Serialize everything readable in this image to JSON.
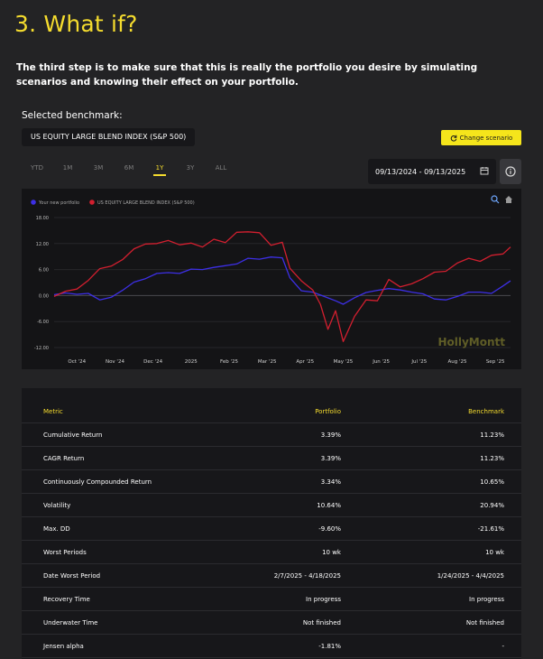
{
  "page": {
    "title": "3. What if?",
    "intro": "The third step is to make sure that this is really the portfolio you desire by simulating scenarios and knowing their effect on your portfolio."
  },
  "benchmark": {
    "label": "Selected benchmark:",
    "value": "US EQUITY LARGE BLEND INDEX (S&P 500)",
    "change_button": "Change scenario"
  },
  "periods": [
    "YTD",
    "1M",
    "3M",
    "6M",
    "1Y",
    "3Y",
    "ALL"
  ],
  "active_period": "1Y",
  "date_range": "09/13/2024 - 09/13/2025",
  "watermark": "HollyMontt",
  "colors": {
    "accent": "#f5dc2e",
    "portfolio": "#3d2fe6",
    "benchmark": "#d21f2f"
  },
  "chart_data": {
    "type": "line",
    "legend": "top-left",
    "grid": true,
    "ylim": [
      -12,
      16
    ],
    "yticks": [
      -12,
      -6,
      0,
      6,
      12,
      18
    ],
    "ytick_labels": [
      "-12.00",
      "-6.00",
      "0.00",
      "6.00",
      "12.00",
      "18.00"
    ],
    "x_tick_labels": [
      "Oct '24",
      "Nov '24",
      "Dec '24",
      "2025",
      "Feb '25",
      "Mar '25",
      "Apr '25",
      "May '25",
      "Jun '25",
      "Jul '25",
      "Aug '25",
      "Sep '25"
    ],
    "x_ticks": [
      0.6,
      1.6,
      2.6,
      3.6,
      4.6,
      5.6,
      6.6,
      7.6,
      8.6,
      9.6,
      10.6,
      11.6
    ],
    "x_range": [
      0,
      12
    ],
    "series": [
      {
        "name": "Your new portfolio",
        "color": "#3d2fe6",
        "points": [
          [
            0.0,
            0.2
          ],
          [
            0.3,
            0.6
          ],
          [
            0.6,
            0.3
          ],
          [
            0.9,
            0.5
          ],
          [
            1.2,
            -1.0
          ],
          [
            1.5,
            -0.4
          ],
          [
            1.8,
            1.2
          ],
          [
            2.1,
            3.1
          ],
          [
            2.4,
            3.9
          ],
          [
            2.7,
            5.1
          ],
          [
            3.0,
            5.3
          ],
          [
            3.3,
            5.1
          ],
          [
            3.6,
            6.1
          ],
          [
            3.9,
            6.0
          ],
          [
            4.2,
            6.5
          ],
          [
            4.5,
            6.9
          ],
          [
            4.8,
            7.3
          ],
          [
            5.1,
            8.6
          ],
          [
            5.4,
            8.4
          ],
          [
            5.7,
            8.9
          ],
          [
            6.0,
            8.7
          ],
          [
            6.2,
            4.1
          ],
          [
            6.5,
            1.1
          ],
          [
            6.8,
            0.8
          ],
          [
            7.1,
            -0.2
          ],
          [
            7.4,
            -1.2
          ],
          [
            7.6,
            -2.0
          ],
          [
            7.9,
            -0.5
          ],
          [
            8.2,
            0.7
          ],
          [
            8.5,
            1.2
          ],
          [
            8.8,
            1.6
          ],
          [
            9.1,
            1.3
          ],
          [
            9.4,
            0.8
          ],
          [
            9.7,
            0.4
          ],
          [
            10.0,
            -0.8
          ],
          [
            10.3,
            -1.0
          ],
          [
            10.6,
            -0.2
          ],
          [
            10.9,
            0.8
          ],
          [
            11.2,
            0.8
          ],
          [
            11.5,
            0.5
          ],
          [
            11.8,
            2.2
          ],
          [
            12.0,
            3.4
          ]
        ]
      },
      {
        "name": "US EQUITY LARGE BLEND INDEX (S&P 500)",
        "color": "#d21f2f",
        "points": [
          [
            0.0,
            -0.2
          ],
          [
            0.3,
            1.0
          ],
          [
            0.6,
            1.5
          ],
          [
            0.9,
            3.5
          ],
          [
            1.2,
            6.2
          ],
          [
            1.5,
            6.8
          ],
          [
            1.8,
            8.3
          ],
          [
            2.1,
            10.8
          ],
          [
            2.4,
            11.9
          ],
          [
            2.7,
            12.0
          ],
          [
            3.0,
            12.7
          ],
          [
            3.3,
            11.7
          ],
          [
            3.6,
            12.1
          ],
          [
            3.9,
            11.2
          ],
          [
            4.2,
            13.0
          ],
          [
            4.5,
            12.2
          ],
          [
            4.8,
            14.6
          ],
          [
            5.1,
            14.7
          ],
          [
            5.4,
            14.5
          ],
          [
            5.7,
            11.6
          ],
          [
            6.0,
            12.3
          ],
          [
            6.2,
            6.3
          ],
          [
            6.5,
            3.4
          ],
          [
            6.8,
            1.3
          ],
          [
            7.0,
            -2.0
          ],
          [
            7.2,
            -7.8
          ],
          [
            7.4,
            -3.5
          ],
          [
            7.6,
            -10.6
          ],
          [
            7.9,
            -4.8
          ],
          [
            8.2,
            -1.0
          ],
          [
            8.5,
            -1.2
          ],
          [
            8.8,
            3.7
          ],
          [
            9.1,
            2.0
          ],
          [
            9.4,
            2.7
          ],
          [
            9.7,
            3.9
          ],
          [
            10.0,
            5.4
          ],
          [
            10.3,
            5.6
          ],
          [
            10.6,
            7.5
          ],
          [
            10.9,
            8.6
          ],
          [
            11.2,
            7.9
          ],
          [
            11.5,
            9.3
          ],
          [
            11.8,
            9.6
          ],
          [
            12.0,
            11.2
          ]
        ]
      }
    ]
  },
  "table": {
    "headers": [
      "Metric",
      "Portfolio",
      "Benchmark"
    ],
    "rows": [
      [
        "Cumulative Return",
        "3.39%",
        "11.23%"
      ],
      [
        "CAGR Return",
        "3.39%",
        "11.23%"
      ],
      [
        "Continuously Compounded Return",
        "3.34%",
        "10.65%"
      ],
      [
        "Volatility",
        "10.64%",
        "20.94%"
      ],
      [
        "Max. DD",
        "-9.60%",
        "-21.61%"
      ],
      [
        "Worst Periods",
        "10 wk",
        "10 wk"
      ],
      [
        "Date Worst Period",
        "2/7/2025 - 4/18/2025",
        "1/24/2025 - 4/4/2025"
      ],
      [
        "Recovery Time",
        "In progress",
        "In progress"
      ],
      [
        "Underwater Time",
        "Not finished",
        "Not finished"
      ],
      [
        "Jensen alpha",
        "-1.81%",
        "-"
      ]
    ]
  }
}
